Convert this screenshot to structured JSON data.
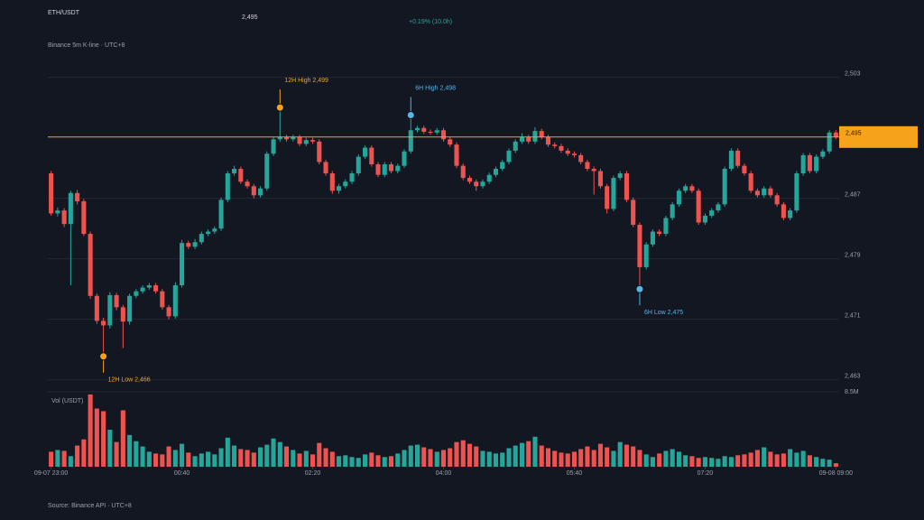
{
  "chart_data": {
    "type": "candlestick",
    "title": "ETH/USDT",
    "header_price": "2,495",
    "change": "+0.19% (10.0h)",
    "subtitle": "Binance 5m K-line · UTC+8",
    "source": "Source: Binance API · UTC+8",
    "up_color": "#26a69a",
    "down_color": "#ef5350",
    "grid": true,
    "xlim": [
      -0.5,
      120.5
    ],
    "xticks": [
      {
        "value": 0,
        "label": "09-07 23:00"
      },
      {
        "value": 20,
        "label": "00:40"
      },
      {
        "value": 40,
        "label": "02:20"
      },
      {
        "value": 60,
        "label": "04:00"
      },
      {
        "value": 80,
        "label": "05:40"
      },
      {
        "value": 100,
        "label": "07:20"
      },
      {
        "value": 120,
        "label": "09-08 09:00"
      }
    ],
    "ylim": [
      2461.3,
      2505.7
    ],
    "yticks": [
      {
        "value": 2463,
        "label": "2,463"
      },
      {
        "value": 2471,
        "label": "2,471"
      },
      {
        "value": 2479,
        "label": "2,479"
      },
      {
        "value": 2487,
        "label": "2,487"
      },
      {
        "value": 2503,
        "label": "2,503"
      }
    ],
    "open": [
      2490.3,
      2485.0,
      2485.4,
      2483.6,
      2487.7,
      2486.6,
      2482.3,
      2474.1,
      2470.8,
      2470.2,
      2474.2,
      2472.6,
      2470.7,
      2474.1,
      2474.7,
      2475.2,
      2475.5,
      2474.7,
      2472.6,
      2471.4,
      2475.5,
      2481.1,
      2480.6,
      2481.2,
      2482.3,
      2482.6,
      2483.0,
      2486.8,
      2490.3,
      2490.9,
      2489.2,
      2488.6,
      2487.4,
      2488.3,
      2492.9,
      2494.8,
      2495.1,
      2494.8,
      2495.1,
      2494.2,
      2494.7,
      2494.5,
      2491.8,
      2490.3,
      2488.0,
      2488.6,
      2489.2,
      2490.3,
      2492.5,
      2493.7,
      2491.5,
      2490.1,
      2491.5,
      2490.6,
      2491.3,
      2493.2,
      2496.0,
      2496.3,
      2495.8,
      2495.7,
      2496.0,
      2494.8,
      2494.1,
      2491.3,
      2489.7,
      2489.2,
      2488.6,
      2489.2,
      2490.1,
      2490.9,
      2491.8,
      2493.3,
      2494.5,
      2495.1,
      2494.5,
      2495.9,
      2495.1,
      2494.1,
      2493.9,
      2493.3,
      2492.9,
      2492.7,
      2491.8,
      2490.9,
      2490.6,
      2488.6,
      2485.6,
      2489.7,
      2490.3,
      2486.8,
      2483.5,
      2477.9,
      2480.9,
      2482.6,
      2482.3,
      2484.4,
      2486.2,
      2488.0,
      2488.6,
      2488.0,
      2483.8,
      2484.7,
      2485.4,
      2486.2,
      2490.9,
      2493.3,
      2491.3,
      2490.3,
      2488.0,
      2487.4,
      2488.3,
      2487.4,
      2486.2,
      2484.4,
      2485.4,
      2490.3,
      2492.7,
      2490.6,
      2492.5,
      2493.2,
      2495.7
    ],
    "high": [
      2490.6,
      2485.8,
      2485.7,
      2488.0,
      2488.1,
      2486.9,
      2482.6,
      2474.4,
      2471.2,
      2474.6,
      2474.5,
      2472.9,
      2474.4,
      2475.0,
      2475.5,
      2475.8,
      2475.8,
      2475.0,
      2472.9,
      2475.9,
      2481.5,
      2481.4,
      2481.6,
      2482.6,
      2482.9,
      2483.3,
      2487.1,
      2490.6,
      2491.3,
      2491.2,
      2489.5,
      2488.9,
      2488.6,
      2493.2,
      2495.1,
      2499.0,
      2495.4,
      2495.4,
      2495.4,
      2495.0,
      2495.0,
      2494.8,
      2492.1,
      2490.6,
      2488.9,
      2489.5,
      2490.6,
      2492.8,
      2494.0,
      2494.0,
      2491.8,
      2491.8,
      2491.8,
      2491.6,
      2493.5,
      2498.0,
      2496.6,
      2496.6,
      2496.1,
      2496.3,
      2496.3,
      2495.1,
      2494.4,
      2491.6,
      2490.0,
      2489.5,
      2489.5,
      2490.4,
      2491.2,
      2492.1,
      2493.6,
      2494.8,
      2495.6,
      2495.4,
      2496.4,
      2496.2,
      2495.4,
      2494.4,
      2494.2,
      2493.6,
      2493.2,
      2493.0,
      2492.1,
      2491.2,
      2490.9,
      2488.9,
      2490.0,
      2490.6,
      2490.6,
      2487.1,
      2483.8,
      2481.2,
      2482.9,
      2482.9,
      2484.7,
      2486.5,
      2488.3,
      2488.9,
      2488.9,
      2488.3,
      2485.0,
      2485.7,
      2486.5,
      2491.2,
      2493.6,
      2493.6,
      2491.6,
      2490.6,
      2488.3,
      2488.6,
      2488.6,
      2487.7,
      2486.5,
      2485.7,
      2490.6,
      2493.0,
      2493.0,
      2492.8,
      2493.5,
      2496.0,
      2496.0
    ],
    "low": [
      2484.7,
      2484.6,
      2483.2,
      2475.5,
      2486.2,
      2482.0,
      2473.7,
      2470.4,
      2466.1,
      2469.8,
      2472.2,
      2467.2,
      2470.3,
      2473.8,
      2474.4,
      2474.9,
      2474.4,
      2472.3,
      2471.0,
      2471.1,
      2475.2,
      2480.3,
      2480.3,
      2480.9,
      2482.0,
      2482.3,
      2482.7,
      2486.5,
      2490.0,
      2488.9,
      2488.3,
      2487.0,
      2487.1,
      2488.0,
      2492.6,
      2494.5,
      2494.5,
      2494.5,
      2493.9,
      2493.9,
      2494.2,
      2491.5,
      2490.0,
      2487.6,
      2487.6,
      2488.3,
      2488.9,
      2490.0,
      2492.2,
      2491.2,
      2489.8,
      2489.8,
      2490.3,
      2490.3,
      2491.0,
      2492.9,
      2495.7,
      2495.5,
      2495.4,
      2495.4,
      2494.5,
      2493.8,
      2491.0,
      2489.4,
      2488.9,
      2488.0,
      2488.3,
      2488.9,
      2489.8,
      2490.6,
      2491.5,
      2493.0,
      2494.2,
      2494.2,
      2494.2,
      2494.8,
      2493.8,
      2493.6,
      2493.0,
      2492.6,
      2492.4,
      2491.5,
      2490.6,
      2487.5,
      2488.3,
      2485.0,
      2485.3,
      2489.4,
      2486.5,
      2483.2,
      2475.0,
      2477.6,
      2480.6,
      2482.0,
      2482.0,
      2484.1,
      2485.9,
      2487.7,
      2487.7,
      2483.5,
      2483.5,
      2484.4,
      2485.1,
      2485.9,
      2490.6,
      2491.0,
      2490.0,
      2487.7,
      2487.1,
      2487.1,
      2487.1,
      2485.9,
      2484.1,
      2484.1,
      2485.1,
      2490.0,
      2490.3,
      2490.3,
      2492.2,
      2492.9,
      2494.8
    ],
    "close": [
      2485.0,
      2485.4,
      2483.6,
      2487.7,
      2486.6,
      2482.3,
      2474.1,
      2470.8,
      2470.2,
      2474.2,
      2472.6,
      2470.7,
      2474.1,
      2474.7,
      2475.2,
      2475.5,
      2474.7,
      2472.6,
      2471.4,
      2475.5,
      2481.1,
      2480.6,
      2481.2,
      2482.3,
      2482.6,
      2483.0,
      2486.8,
      2490.3,
      2490.9,
      2489.2,
      2488.6,
      2487.4,
      2488.3,
      2492.9,
      2494.8,
      2495.1,
      2494.8,
      2495.1,
      2494.2,
      2494.7,
      2494.5,
      2491.8,
      2490.3,
      2488.0,
      2488.6,
      2489.2,
      2490.3,
      2492.5,
      2493.7,
      2491.5,
      2490.1,
      2491.5,
      2490.6,
      2491.3,
      2493.2,
      2496.0,
      2496.3,
      2495.8,
      2495.7,
      2496.0,
      2494.8,
      2494.1,
      2491.3,
      2489.7,
      2489.2,
      2488.6,
      2489.2,
      2490.1,
      2490.9,
      2491.8,
      2493.3,
      2494.5,
      2495.1,
      2494.5,
      2495.9,
      2495.1,
      2494.1,
      2493.9,
      2493.3,
      2492.9,
      2492.7,
      2491.8,
      2490.9,
      2490.6,
      2488.6,
      2485.6,
      2489.7,
      2490.3,
      2486.8,
      2483.5,
      2477.9,
      2480.9,
      2482.6,
      2482.3,
      2484.4,
      2486.2,
      2488.0,
      2488.6,
      2488.0,
      2483.8,
      2484.7,
      2485.4,
      2486.2,
      2490.9,
      2493.3,
      2491.3,
      2490.3,
      2488.0,
      2487.4,
      2488.3,
      2487.4,
      2486.2,
      2484.4,
      2485.4,
      2490.3,
      2492.7,
      2490.6,
      2492.5,
      2493.2,
      2495.7,
      2495.1
    ],
    "current_price": {
      "value": 2495.1,
      "label": "2,495",
      "color": "#f7a21b"
    },
    "annotations": [
      {
        "text": "12H High 2,499",
        "index": 35,
        "value": 2499.0,
        "color": "#f7a21b"
      },
      {
        "text": "6H High 2,498",
        "index": 55,
        "value": 2498.0,
        "color": "#5ab4e6"
      },
      {
        "text": "6H Low 2,475",
        "index": 90,
        "value": 2475.0,
        "color": "#5ab4e6"
      },
      {
        "text": "12H Low 2,466",
        "index": 8,
        "value": 2466.1,
        "color": "#f7a21b"
      }
    ],
    "volume": {
      "label": "Vol (USDT)",
      "ylim": [
        0,
        8.5
      ],
      "yticks": [
        {
          "value": 8.5,
          "label": "8.5M"
        }
      ],
      "values": [
        1.7,
        1.9,
        1.8,
        1.2,
        2.4,
        3.1,
        8.2,
        6.6,
        6.3,
        4.2,
        2.8,
        6.4,
        3.6,
        2.9,
        2.3,
        1.7,
        1.5,
        1.4,
        2.3,
        1.9,
        2.6,
        1.6,
        1.2,
        1.5,
        1.7,
        1.4,
        2.1,
        3.3,
        2.4,
        2.0,
        1.9,
        1.6,
        2.2,
        2.5,
        3.2,
        2.8,
        2.3,
        1.9,
        1.5,
        1.8,
        1.4,
        2.7,
        2.1,
        1.7,
        1.2,
        1.3,
        1.1,
        1.0,
        1.4,
        1.6,
        1.3,
        1.1,
        1.2,
        1.5,
        1.9,
        2.4,
        2.5,
        2.2,
        2.0,
        1.7,
        1.9,
        2.1,
        2.8,
        3.0,
        2.6,
        2.3,
        1.8,
        1.7,
        1.5,
        1.6,
        2.1,
        2.4,
        2.7,
        2.9,
        3.4,
        2.4,
        2.1,
        1.8,
        1.6,
        1.5,
        1.7,
        2.0,
        2.3,
        1.9,
        2.6,
        2.2,
        1.8,
        2.8,
        2.5,
        2.3,
        1.9,
        1.4,
        1.1,
        1.5,
        1.8,
        2.0,
        1.7,
        1.3,
        1.2,
        1.0,
        1.1,
        1.0,
        0.9,
        1.2,
        1.1,
        1.3,
        1.4,
        1.6,
        1.9,
        2.2,
        1.7,
        1.4,
        1.5,
        2.0,
        1.6,
        1.8,
        1.3,
        1.1,
        0.9,
        0.8,
        0.4
      ]
    }
  }
}
